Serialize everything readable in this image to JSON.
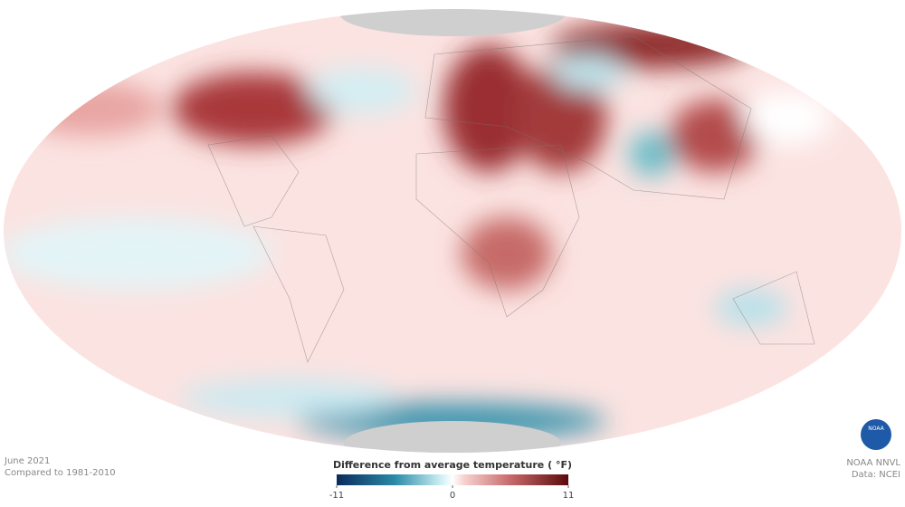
{
  "caption": {
    "period": "June 2021",
    "baseline": "Compared to 1981-2010"
  },
  "legend": {
    "title": "Difference from average temperature ( °F)",
    "range": [
      -11,
      11
    ],
    "ticks": [
      -11,
      0,
      11
    ]
  },
  "credits": {
    "logo": "NOAA",
    "line1": "NOAA NNVL",
    "line2": "Data: NCEI"
  }
}
